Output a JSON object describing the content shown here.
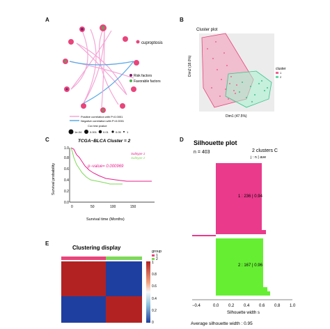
{
  "panels": {
    "A": {
      "label": "A",
      "legend_title": "cuproptosis",
      "legend_risk": "Risk factors",
      "legend_favorable": "Favorable factors",
      "legend_pos": "Positive correlation with P<0.0001",
      "legend_neg": "Negative correlation with P<0.0001",
      "legend_size_title": "Cox test pvalue",
      "size_labels": [
        "1e-04",
        "0.001",
        "0.01",
        "0.05",
        "1"
      ],
      "colors": {
        "positive": "#f4a6d6",
        "negative": "#5aa8e6",
        "node_pink": "#e8457c",
        "risk": "#7b1f6a",
        "favorable": "#4caf50"
      }
    },
    "B": {
      "label": "B",
      "title": "Cluster plot",
      "xlabel": "Dim1 (47.5%)",
      "ylabel": "Dim2 (18.0%)",
      "legend_title": "cluster",
      "legend_items": [
        "1",
        "2"
      ],
      "colors": {
        "c1": "#f06292",
        "c2": "#66d9a8"
      }
    },
    "C": {
      "label": "C",
      "title": "TCGA−BLCA Cluster = 2",
      "pvalue": "p−value= 0.000969",
      "legend": [
        "Subtype 1",
        "Subtype 2"
      ],
      "xlabel": "Survival time (Months)",
      "ylabel": "Survival probability",
      "x_ticks": [
        "0",
        "50",
        "100",
        "150"
      ],
      "y_ticks": [
        "0.0",
        "0.2",
        "0.4",
        "0.6",
        "0.8",
        "1.0"
      ],
      "colors": {
        "s1": "#e91e8c",
        "s2": "#7ed957"
      }
    },
    "D": {
      "label": "D",
      "title": "Silhouette plot",
      "n": "n = 403",
      "header_clusters": "2  clusters  C",
      "header_cols": "j : n  |  ave",
      "row1": "1 :  236  |  0.94",
      "row2": "2 :  167  |  0.96",
      "x_ticks": [
        "−0.4",
        "0.0",
        "0.2",
        "0.4",
        "0.6",
        "0.8",
        "1.0"
      ],
      "xlabel": "Silhouette width s",
      "footer": "Average silhouette width :  0.95",
      "colors": {
        "c1": "#ea3a8c",
        "c2": "#66ee33"
      }
    },
    "E": {
      "label": "E",
      "title": "Clustering display",
      "legend_title": "group",
      "legend_items": [
        "1",
        "2"
      ],
      "scale_ticks": [
        "1",
        "0.8",
        "0.6",
        "0.4",
        "0.2",
        "0"
      ],
      "colors": {
        "g1": "#e8457c",
        "g2": "#7ed957",
        "high": "#b22222",
        "low": "#1f3fa0"
      }
    }
  }
}
